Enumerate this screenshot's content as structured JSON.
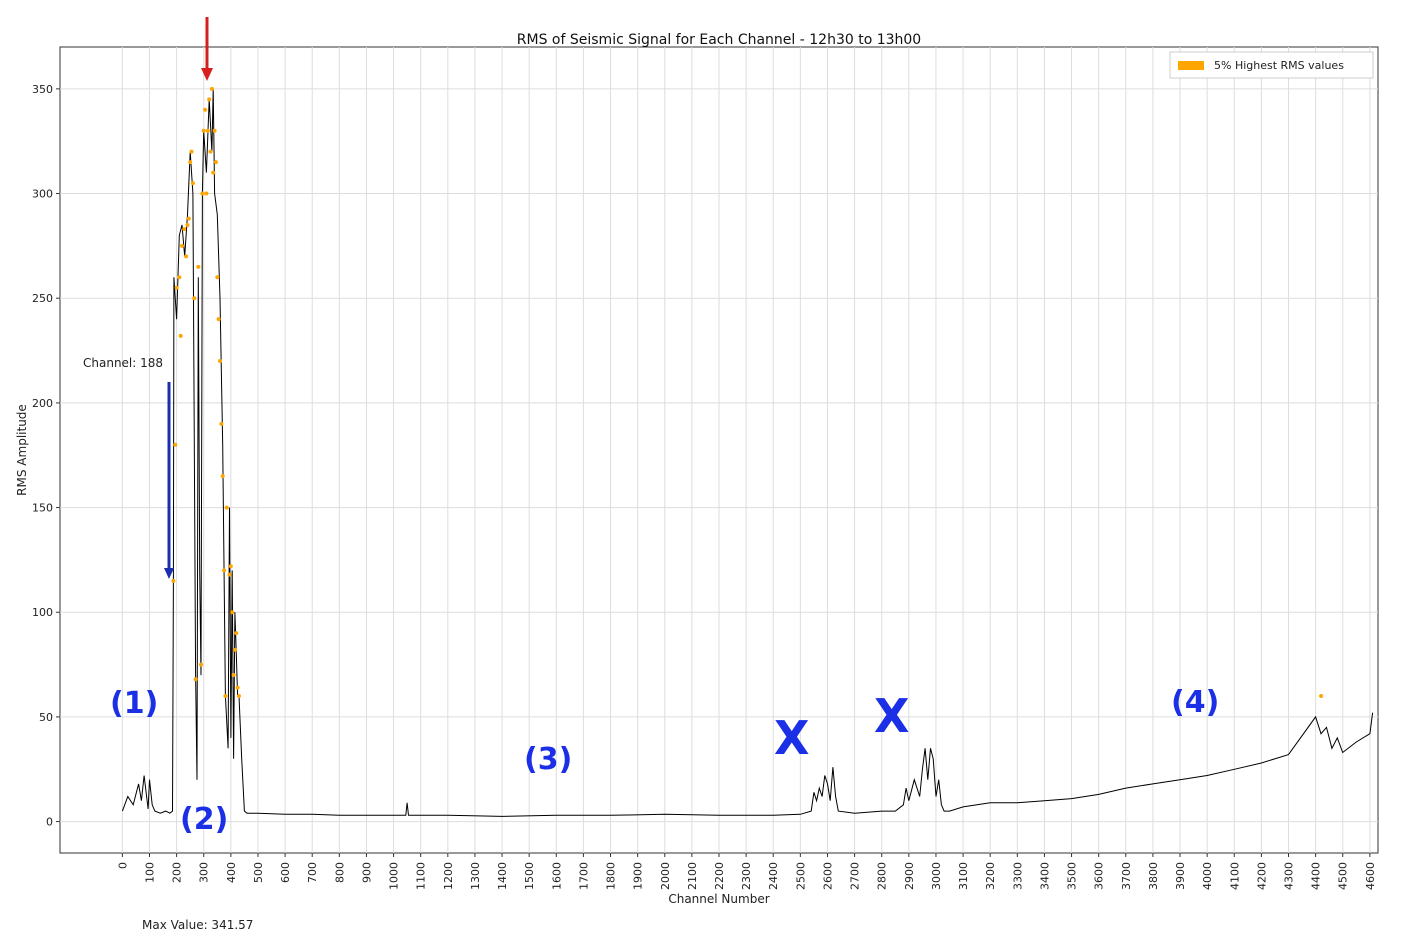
{
  "chart_data": {
    "type": "line",
    "title": "RMS of Seismic Signal for Each Channel - 12h30 to 13h00",
    "xlabel": "Channel Number",
    "ylabel": "RMS Amplitude",
    "xlim": [
      -230,
      4630
    ],
    "ylim": [
      -15,
      370
    ],
    "xticks": [
      0,
      100,
      200,
      300,
      400,
      500,
      600,
      700,
      800,
      900,
      1000,
      1100,
      1200,
      1300,
      1400,
      1500,
      1600,
      1700,
      1800,
      1900,
      2000,
      2100,
      2200,
      2300,
      2400,
      2500,
      2600,
      2700,
      2800,
      2900,
      3000,
      3100,
      3200,
      3300,
      3400,
      3500,
      3600,
      3700,
      3800,
      3900,
      4000,
      4100,
      4200,
      4300,
      4400,
      4500,
      4600
    ],
    "yticks": [
      0,
      50,
      100,
      150,
      200,
      250,
      300,
      350
    ],
    "grid": true,
    "legend": {
      "placement": "top-right",
      "entries": [
        {
          "name": "5% Highest RMS values",
          "color": "#ffa500"
        }
      ]
    },
    "series": [
      {
        "x": [
          0,
          20,
          40,
          60,
          70,
          80,
          95,
          100,
          110,
          120,
          140,
          160,
          175,
          185,
          188,
          190,
          200,
          210,
          220,
          230,
          240,
          250,
          260,
          270,
          275,
          280,
          285,
          290,
          295,
          300,
          310,
          320,
          330,
          335,
          340,
          350,
          360,
          370,
          380,
          390,
          395,
          400,
          405,
          410,
          415,
          420,
          425,
          430,
          440,
          450,
          460,
          500,
          600,
          700,
          800,
          1000,
          1045,
          1050,
          1055,
          1060,
          1200,
          1400,
          1600,
          1800,
          2000,
          2200,
          2400,
          2500,
          2540,
          2550,
          2560,
          2570,
          2580,
          2590,
          2600,
          2610,
          2620,
          2630,
          2640,
          2700,
          2800,
          2850,
          2880,
          2890,
          2900,
          2920,
          2940,
          2950,
          2960,
          2970,
          2980,
          2990,
          3000,
          3010,
          3020,
          3030,
          3050,
          3100,
          3200,
          3300,
          3400,
          3500,
          3600,
          3700,
          3800,
          3900,
          4000,
          4100,
          4200,
          4300,
          4400,
          4420,
          4440,
          4460,
          4480,
          4500,
          4550,
          4600,
          4610
        ],
        "y": [
          5,
          12,
          8,
          18,
          10,
          22,
          6,
          20,
          8,
          5,
          4,
          5,
          4,
          5,
          115,
          260,
          240,
          280,
          285,
          270,
          290,
          320,
          300,
          70,
          20,
          260,
          120,
          70,
          300,
          330,
          310,
          345,
          320,
          350,
          300,
          290,
          250,
          180,
          60,
          35,
          150,
          40,
          120,
          30,
          100,
          80,
          60,
          60,
          30,
          5,
          4,
          4,
          3.5,
          3.5,
          3,
          3,
          3,
          9,
          3,
          3,
          3,
          2.5,
          3,
          3,
          3.5,
          3,
          3,
          3.5,
          5,
          14,
          10,
          16,
          12,
          22,
          18,
          10,
          26,
          12,
          5,
          4,
          5,
          5,
          8,
          16,
          10,
          20,
          12,
          25,
          35,
          20,
          35,
          30,
          12,
          20,
          8,
          5,
          5,
          7,
          9,
          9,
          10,
          11,
          13,
          16,
          18,
          20,
          22,
          25,
          28,
          32,
          50,
          42,
          45,
          35,
          40,
          33,
          38,
          42,
          52
        ],
        "color": "#000000"
      }
    ],
    "highlight_points": {
      "name": "5% Highest RMS values",
      "color": "#ffa500",
      "x": [
        188,
        195,
        200,
        210,
        215,
        220,
        228,
        235,
        240,
        245,
        250,
        255,
        260,
        265,
        270,
        280,
        290,
        295,
        300,
        305,
        310,
        315,
        320,
        325,
        330,
        335,
        340,
        345,
        350,
        355,
        360,
        365,
        370,
        375,
        380,
        385,
        395,
        400,
        405,
        410,
        415,
        420,
        425,
        430,
        4420
      ],
      "y": [
        115,
        180,
        255,
        260,
        232,
        275,
        283,
        270,
        285,
        288,
        315,
        320,
        305,
        250,
        68,
        265,
        75,
        300,
        330,
        340,
        300,
        330,
        345,
        320,
        350,
        310,
        330,
        315,
        260,
        240,
        220,
        190,
        165,
        120,
        60,
        150,
        118,
        122,
        100,
        70,
        82,
        90,
        64,
        60,
        60
      ]
    },
    "annotations": {
      "channel_label": "Channel: 188",
      "max_value_label": "Max Value: 341.57",
      "region_1": "(1)",
      "region_2": "(2)",
      "region_3": "(3)",
      "region_4": "(4)",
      "x_mark_1": "X",
      "x_mark_2": "X"
    }
  }
}
